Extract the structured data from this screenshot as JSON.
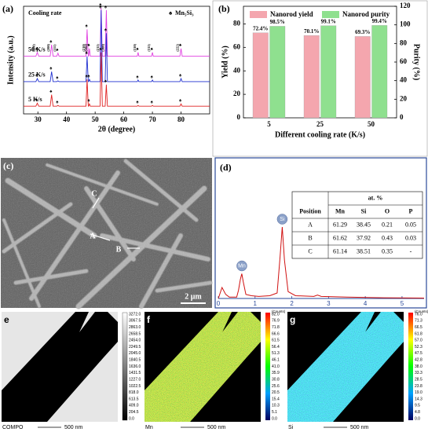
{
  "panel_labels": [
    "(a)",
    "(b)",
    "(c)",
    "(d)",
    "e",
    "f",
    "g"
  ],
  "chart_data": [
    {
      "type": "line",
      "xlabel": "2θ (degree)",
      "ylabel": "Intensity (a.u.)",
      "legend_title": "Cooling rate",
      "marker": "♠",
      "marker_label": "Mn₅Si₃",
      "x": [
        25,
        29.3,
        29.8,
        30.3,
        34.3,
        34.8,
        35.3,
        36.6,
        37,
        37.4,
        46.8,
        47.2,
        47.6,
        47.7,
        48,
        48.3,
        51.7,
        52.1,
        52.5,
        53.5,
        53.9,
        54.3,
        64.7,
        65,
        65.3,
        69.7,
        70,
        70.3,
        79.6,
        80,
        80.4,
        90
      ],
      "series": [
        {
          "name": "50 K/s",
          "color": "#e040e0",
          "values": [
            7.5,
            7.5,
            8,
            7.5,
            7.5,
            9,
            7.5,
            7.5,
            7.9,
            7.5,
            7.5,
            11,
            7.5,
            7.5,
            8.5,
            7.5,
            7.5,
            13.8,
            7.5,
            7.5,
            13.5,
            7.5,
            7.5,
            8,
            7.5,
            7.5,
            8,
            7.5,
            7.5,
            8.5,
            7.5,
            7.5
          ]
        },
        {
          "name": "25 K/s",
          "color": "#2030d0",
          "values": [
            4.2,
            4.2,
            4.6,
            4.2,
            4.2,
            5.5,
            4.2,
            4.2,
            4.3,
            4.2,
            4.2,
            7.5,
            4.2,
            4.2,
            4.5,
            4.2,
            4.2,
            13.5,
            4.2,
            4.2,
            10.5,
            4.2,
            4.2,
            4.4,
            4.2,
            4.2,
            4.4,
            4.2,
            4.2,
            4.6,
            4.2,
            4.2
          ]
        },
        {
          "name": "5 K/s",
          "color": "#e02020",
          "values": [
            1,
            1,
            1.4,
            1,
            1,
            2.5,
            1,
            1,
            1.1,
            1,
            1,
            4.5,
            1,
            1,
            1.3,
            1,
            1,
            8,
            1,
            1,
            3.8,
            1,
            1,
            1.1,
            1,
            1,
            1.1,
            1,
            1,
            1.3,
            1,
            1
          ]
        }
      ],
      "xlim": [
        25,
        90
      ],
      "xticks": [
        30,
        40,
        50,
        60,
        70,
        80
      ],
      "ylim": [
        0,
        14
      ],
      "peak_labels": [
        {
          "x": 29.8,
          "label": "(110)"
        },
        {
          "x": 34.8,
          "label": "(200)"
        },
        {
          "x": 37,
          "label": "(111)"
        },
        {
          "x": 47.2,
          "label": "(210)"
        },
        {
          "x": 48,
          "label": "(102)"
        },
        {
          "x": 52.1,
          "label": "(211)"
        },
        {
          "x": 53.9,
          "label": "(300)"
        },
        {
          "x": 65,
          "label": "(310)"
        },
        {
          "x": 70,
          "label": "(311)"
        },
        {
          "x": 80,
          "label": "(222)"
        }
      ]
    },
    {
      "type": "bar",
      "xlabel": "Different cooling rate (K/s)",
      "ylabel": "Yield (%)",
      "y2label": "Purity (%)",
      "categories": [
        "5",
        "25",
        "50"
      ],
      "series": [
        {
          "name": "Nanorod yield",
          "color": "#f4a6ae",
          "values": [
            72.4,
            70.1,
            69.3
          ],
          "value_labels": [
            "72.4%",
            "70.1%",
            "69.3%"
          ]
        },
        {
          "name": "Nanorod purity",
          "color": "#8fe08f",
          "axis": "y2",
          "values": [
            98.5,
            99.1,
            99.4
          ],
          "value_labels": [
            "98.5%",
            "99.1%",
            "99.4%"
          ]
        }
      ],
      "ylim": [
        0,
        95
      ],
      "yticks": [
        0,
        20,
        40,
        60,
        80
      ],
      "y2lim": [
        0,
        120
      ],
      "y2ticks": [
        0,
        20,
        40,
        60,
        80,
        100,
        120
      ]
    },
    {
      "type": "line",
      "color": "#d01010",
      "x": [
        0,
        0.1,
        0.2,
        0.3,
        0.5,
        0.55,
        0.6,
        0.64,
        0.68,
        0.75,
        0.9,
        1.1,
        1.4,
        1.6,
        1.68,
        1.74,
        1.8,
        1.9,
        2.1,
        2.6,
        2.7,
        2.8,
        3.5,
        4.5,
        5.6
      ],
      "values": [
        0,
        8,
        3,
        1,
        1,
        6,
        14,
        18,
        12,
        3,
        2,
        1.5,
        2,
        4,
        30,
        52,
        28,
        5,
        2,
        1.5,
        2.5,
        1.5,
        1,
        0.5,
        0.3
      ],
      "xlim": [
        0,
        5.6
      ],
      "xticks": [
        0,
        1,
        2,
        3,
        4,
        5
      ],
      "ylim": [
        0,
        100
      ],
      "peak_labels": [
        {
          "x": 0.64,
          "label": "Mn"
        },
        {
          "x": 1.74,
          "label": "Si"
        }
      ]
    }
  ],
  "sem": {
    "labels": [
      "C",
      "A",
      "B"
    ],
    "scale_bar": "2 μm"
  },
  "eds_table": {
    "header": "at. %",
    "columns": [
      "Position",
      "Mn",
      "Si",
      "O",
      "P"
    ],
    "rows": [
      [
        "A",
        "61.29",
        "38.45",
        "0.21",
        "0.05"
      ],
      [
        "B",
        "61.62",
        "37.92",
        "0.43",
        "0.03"
      ],
      [
        "C",
        "61.14",
        "38.51",
        "0.35",
        "-"
      ]
    ]
  },
  "maps": [
    {
      "label": "COMPO",
      "scale_bar": "500 nm",
      "colorbar": [
        "3272.0",
        "3067.5",
        "2863.0",
        "2658.5",
        "2454.0",
        "2249.5",
        "2045.0",
        "1840.5",
        "1636.0",
        "1431.5",
        "1227.0",
        "1022.5",
        "818.0",
        "613.5",
        "409.0",
        "204.5",
        "0.0"
      ]
    },
    {
      "label": "Mn",
      "scale_bar": "500 nm",
      "colorbar_title": "(Counts)",
      "colorbar": [
        "82.0",
        "76.9",
        "71.8",
        "66.6",
        "61.5",
        "56.4",
        "51.3",
        "46.1",
        "41.0",
        "35.9",
        "30.8",
        "25.6",
        "20.5",
        "15.4",
        "10.3",
        "5.1",
        "0.0"
      ]
    },
    {
      "label": "Si",
      "scale_bar": "500 nm",
      "colorbar_title": "(Counts)",
      "colorbar": [
        "76.0",
        "71.3",
        "66.5",
        "61.8",
        "57.0",
        "52.3",
        "47.5",
        "42.8",
        "38.0",
        "33.3",
        "28.5",
        "23.8",
        "19.0",
        "14.3",
        "9.5",
        "4.8",
        "0.0"
      ]
    }
  ]
}
